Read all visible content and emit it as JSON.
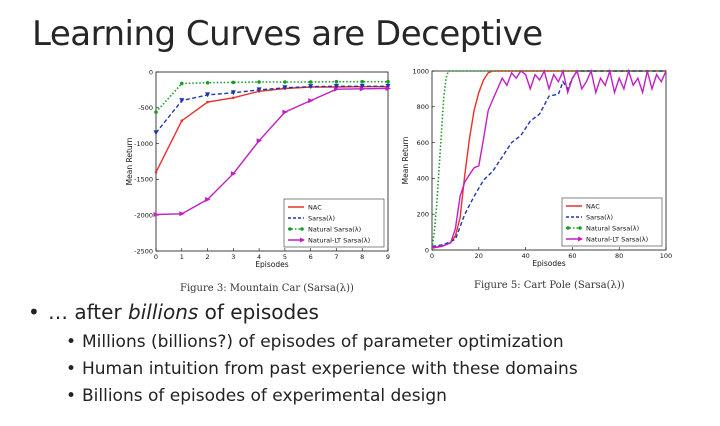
{
  "title": "Learning Curves are Deceptive",
  "chart_data": [
    {
      "type": "line",
      "title": "",
      "caption": "Figure 3: Mountain Car (Sarsa(λ))",
      "xlabel": "Episodes",
      "ylabel": "Mean Return",
      "xlim": [
        0,
        9
      ],
      "ylim": [
        -2500,
        0
      ],
      "xticks": [
        0,
        1,
        2,
        3,
        4,
        5,
        6,
        7,
        8,
        9
      ],
      "yticks": [
        0,
        -500,
        -1000,
        -1500,
        -2000,
        -2500
      ],
      "legend_position": "bottom-right",
      "series": [
        {
          "name": "NAC",
          "color": "#e8302a",
          "style": "solid",
          "x": [
            0,
            1,
            2,
            3,
            4,
            5,
            6,
            7,
            8,
            9
          ],
          "y": [
            -1400,
            -680,
            -420,
            -360,
            -270,
            -230,
            -210,
            -210,
            -205,
            -205
          ]
        },
        {
          "name": "Sarsa(λ)",
          "color": "#1f35b0",
          "style": "dashed",
          "x": [
            0,
            1,
            2,
            3,
            4,
            5,
            6,
            7,
            8,
            9
          ],
          "y": [
            -850,
            -400,
            -320,
            -290,
            -250,
            -220,
            -205,
            -200,
            -200,
            -200
          ]
        },
        {
          "name": "Natural Sarsa(λ)",
          "color": "#1a9a2a",
          "style": "dotted",
          "x": [
            0,
            1,
            2,
            3,
            4,
            5,
            6,
            7,
            8,
            9
          ],
          "y": [
            -560,
            -160,
            -150,
            -145,
            -140,
            -140,
            -140,
            -135,
            -135,
            -135
          ]
        },
        {
          "name": "Natural-LT Sarsa(λ)",
          "color": "#c21fc2",
          "style": "solid-marker",
          "x": [
            0,
            1,
            2,
            3,
            4,
            5,
            6,
            7,
            8,
            9
          ],
          "y": [
            -1990,
            -1980,
            -1780,
            -1420,
            -960,
            -560,
            -400,
            -240,
            -235,
            -230
          ]
        }
      ]
    },
    {
      "type": "line",
      "title": "",
      "caption": "Figure 5: Cart Pole (Sarsa(λ))",
      "xlabel": "Episodes",
      "ylabel": "Mean Return",
      "xlim": [
        0,
        100
      ],
      "ylim": [
        0,
        1000
      ],
      "xticks": [
        0,
        20,
        40,
        60,
        80,
        100
      ],
      "yticks": [
        0,
        200,
        400,
        600,
        800,
        1000
      ],
      "legend_position": "bottom-right",
      "series": [
        {
          "name": "NAC",
          "color": "#e8302a",
          "style": "solid",
          "x": [
            0,
            4,
            8,
            10,
            12,
            14,
            16,
            18,
            20,
            22,
            24,
            26,
            28,
            30,
            35,
            40,
            50,
            60,
            70,
            80,
            90,
            100
          ],
          "y": [
            10,
            20,
            40,
            80,
            180,
            420,
            620,
            780,
            880,
            950,
            990,
            1000,
            1000,
            1000,
            1000,
            1000,
            1000,
            1000,
            1000,
            1000,
            1000,
            1000
          ]
        },
        {
          "name": "Sarsa(λ)",
          "color": "#1f35b0",
          "style": "dashed",
          "x": [
            0,
            5,
            10,
            14,
            18,
            22,
            26,
            30,
            34,
            38,
            42,
            46,
            50,
            54,
            56,
            58,
            60,
            62,
            64,
            66,
            68,
            70,
            72,
            74,
            76,
            78,
            80,
            82,
            84,
            86,
            88,
            90,
            92,
            94,
            96,
            98,
            100
          ],
          "y": [
            20,
            30,
            60,
            200,
            300,
            390,
            440,
            520,
            600,
            640,
            720,
            760,
            860,
            870,
            940,
            900,
            960,
            1000,
            1000,
            1000,
            1000,
            1000,
            1000,
            1000,
            1000,
            1000,
            1000,
            1000,
            1000,
            1000,
            1000,
            1000,
            1000,
            1000,
            1000,
            1000,
            1000
          ]
        },
        {
          "name": "Natural Sarsa(λ)",
          "color": "#1a9a2a",
          "style": "dotted",
          "x": [
            0,
            1,
            2,
            3,
            4,
            5,
            6,
            7,
            8,
            10,
            20,
            40,
            60,
            80,
            100
          ],
          "y": [
            10,
            100,
            250,
            450,
            650,
            850,
            960,
            1000,
            1000,
            1000,
            1000,
            1000,
            1000,
            1000,
            1000
          ]
        },
        {
          "name": "Natural-LT Sarsa(λ)",
          "color": "#c21fc2",
          "style": "solid-marker",
          "x": [
            0,
            4,
            8,
            10,
            12,
            14,
            16,
            18,
            20,
            22,
            24,
            26,
            28,
            30,
            32,
            34,
            36,
            38,
            40,
            42,
            44,
            46,
            48,
            50,
            52,
            54,
            56,
            58,
            60,
            62,
            64,
            66,
            68,
            70,
            72,
            74,
            76,
            78,
            80,
            82,
            84,
            86,
            88,
            90,
            92,
            94,
            96,
            98,
            100
          ],
          "y": [
            15,
            20,
            40,
            120,
            300,
            380,
            420,
            460,
            470,
            620,
            780,
            840,
            900,
            960,
            920,
            990,
            960,
            1000,
            980,
            900,
            980,
            950,
            1000,
            900,
            980,
            940,
            1000,
            880,
            960,
            1000,
            900,
            940,
            1000,
            880,
            960,
            920,
            1000,
            880,
            960,
            900,
            1000,
            920,
            960,
            880,
            1000,
            900,
            980,
            940,
            1000
          ]
        }
      ]
    }
  ],
  "bullets": {
    "main_prefix": "… after ",
    "main_emph": "billions",
    "main_suffix": " of episodes",
    "sub": [
      "Millions (billions?) of episodes of parameter optimization",
      "Human intuition from past experience with these domains",
      "Billions of episodes of experimental design"
    ]
  }
}
